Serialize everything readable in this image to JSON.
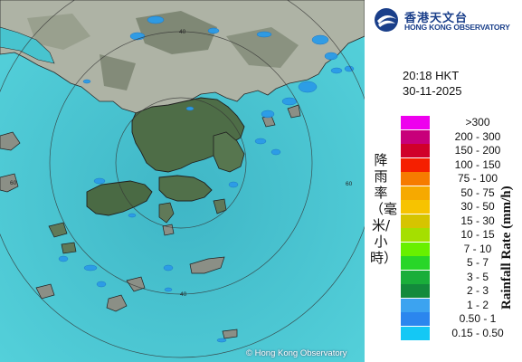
{
  "map": {
    "copyright": "© Hong Kong Observatory",
    "range_ring_labels": [
      "40",
      "60",
      "40",
      "60"
    ],
    "colors": {
      "sea": "#46c5cf",
      "land": "#aeb3a5",
      "vegetation": "#4a6a44",
      "coastline": "#222222",
      "rings": "#333333",
      "echo": "#2b9be8"
    }
  },
  "header": {
    "logo_cn": "香港天文台",
    "logo_en": "HONG KONG OBSERVATORY",
    "time": "20:18 HKT",
    "date": "30-11-2025"
  },
  "legend": {
    "title_cn": "降雨率（毫米/小時）",
    "title_en": "Rainfall Rate (mm/h)",
    "items": [
      {
        "label": ">300",
        "color": "#ee00ee"
      },
      {
        "label": "200 - 300",
        "color": "#c8007a"
      },
      {
        "label": "150 - 200",
        "color": "#d0002a"
      },
      {
        "label": "100 - 150",
        "color": "#f51f00"
      },
      {
        "label": "75 - 100",
        "color": "#f67b00"
      },
      {
        "label": "50 - 75",
        "color": "#f6a900"
      },
      {
        "label": "30 - 50",
        "color": "#f7c300"
      },
      {
        "label": "15 - 30",
        "color": "#d6c400"
      },
      {
        "label": "10 - 15",
        "color": "#a5df00"
      },
      {
        "label": "7 - 10",
        "color": "#68f000"
      },
      {
        "label": "5 - 7",
        "color": "#28d628"
      },
      {
        "label": "3 - 5",
        "color": "#1aae3a"
      },
      {
        "label": "2 - 3",
        "color": "#138a3c"
      },
      {
        "label": "1 - 2",
        "color": "#3ca3f0"
      },
      {
        "label": "0.50 - 1",
        "color": "#2b86ee"
      },
      {
        "label": "0.15 - 0.50",
        "color": "#14c8f5"
      }
    ]
  }
}
